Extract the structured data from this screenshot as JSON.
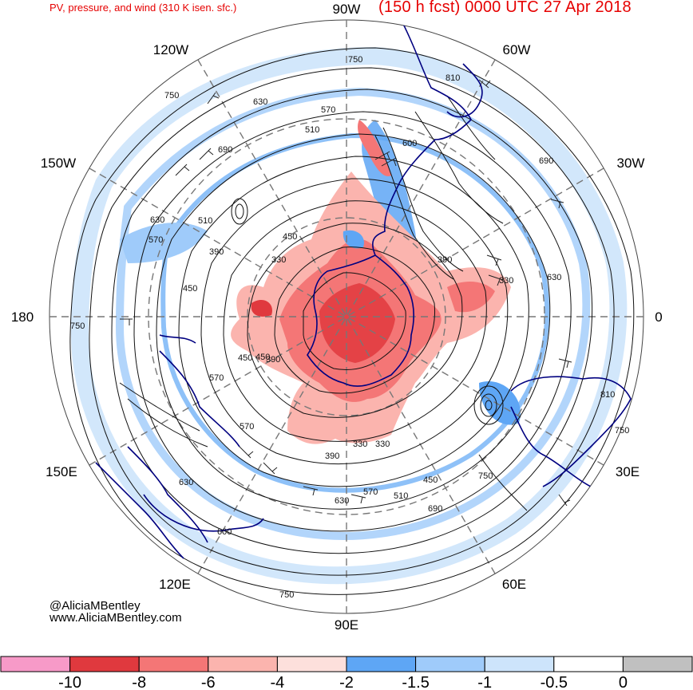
{
  "header": {
    "subtitle": "PV, pressure, and wind (310 K isen. sfc.)",
    "forecast": "(150 h fcst) 0000 UTC 27 Apr 2018"
  },
  "credits": {
    "handle": "@AliciaMBentley",
    "site": "www.AliciaMBentley.com"
  },
  "longitude_labels": [
    {
      "text": "90W",
      "lon": -90
    },
    {
      "text": "60W",
      "lon": -60
    },
    {
      "text": "30W",
      "lon": -30
    },
    {
      "text": "0",
      "lon": 0
    },
    {
      "text": "30E",
      "lon": 30
    },
    {
      "text": "60E",
      "lon": 60
    },
    {
      "text": "90E",
      "lon": 90
    },
    {
      "text": "120E",
      "lon": 120
    },
    {
      "text": "150E",
      "lon": 150
    },
    {
      "text": "180",
      "lon": 180
    },
    {
      "text": "150W",
      "lon": -150
    },
    {
      "text": "120W",
      "lon": -120
    }
  ],
  "contour_labels": [
    "750",
    "630",
    "570",
    "510",
    "690",
    "630",
    "570",
    "510",
    "450",
    "390",
    "330",
    "450",
    "390",
    "330",
    "450",
    "390",
    "570",
    "570",
    "630",
    "600",
    "750",
    "330",
    "390",
    "450",
    "570",
    "630",
    "510",
    "690",
    "750",
    "750",
    "810",
    "810",
    "750",
    "630",
    "600",
    "690",
    "330",
    "450",
    "750"
  ],
  "colorbar": {
    "colors": [
      "#f79ac8",
      "#e0393e",
      "#f47676",
      "#fbb4ae",
      "#fde0dc",
      "#5ea6f5",
      "#9fcbfa",
      "#cde4fb",
      "#ffffff",
      "#c0c0c0"
    ],
    "tick_labels": [
      "-10",
      "-8",
      "-6",
      "-4",
      "-2",
      "-1.5",
      "-1",
      "-0.5",
      "0"
    ]
  },
  "map_colors": {
    "land_outline": "#000080",
    "contour": "#111111",
    "graticule": "#777777"
  }
}
